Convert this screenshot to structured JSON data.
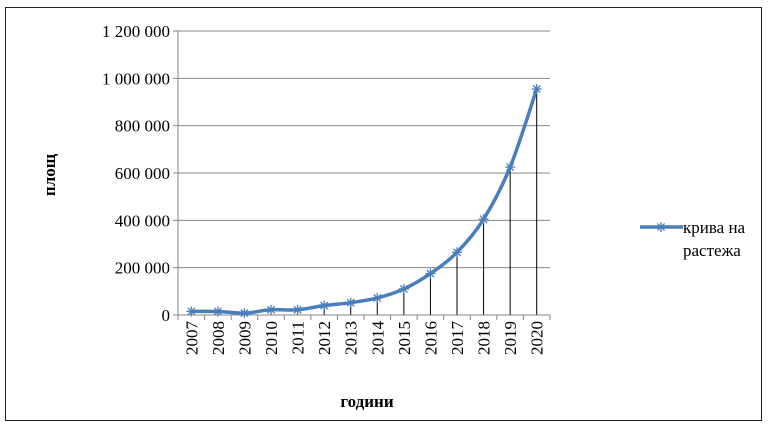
{
  "chart_data": {
    "type": "line",
    "title": "",
    "xlabel": "години",
    "ylabel": "площ",
    "categories": [
      "2007",
      "2008",
      "2009",
      "2010",
      "2011",
      "2012",
      "2013",
      "2014",
      "2015",
      "2016",
      "2017",
      "2018",
      "2019",
      "2020"
    ],
    "series": [
      {
        "name": "крива на растежа",
        "legend_lines": [
          "крива на",
          "растежа"
        ],
        "values": [
          15000,
          15000,
          8000,
          22000,
          22000,
          40000,
          52000,
          72000,
          110000,
          175000,
          265000,
          405000,
          625000,
          955000
        ],
        "color": "#4a7ebb",
        "marker": "asterisk"
      }
    ],
    "ylim": [
      0,
      1200000
    ],
    "yticks": [
      0,
      200000,
      400000,
      600000,
      800000,
      1000000,
      1200000
    ],
    "ytick_labels": [
      "0",
      "200 000",
      "400 000",
      "600 000",
      "800 000",
      "1 000 000",
      "1 200 000"
    ],
    "grid": true,
    "drop_lines": true,
    "legend_position": "right"
  }
}
